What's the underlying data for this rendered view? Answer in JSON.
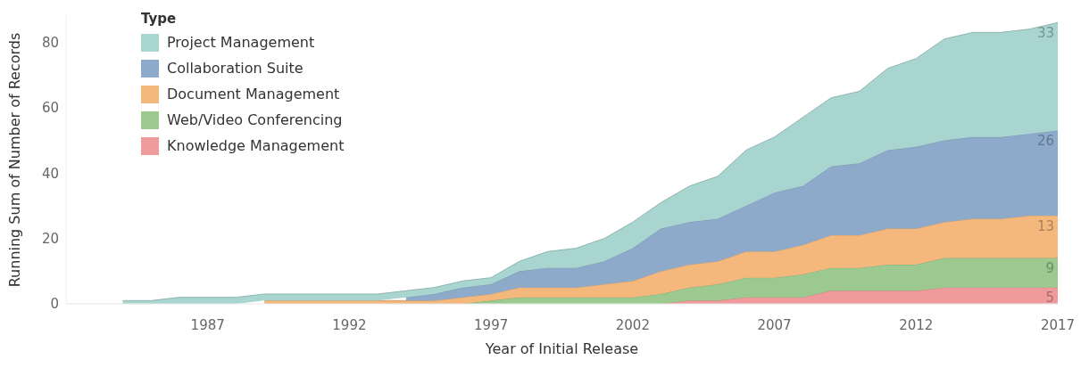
{
  "chart_data": {
    "type": "area",
    "stacked": true,
    "xlabel": "Year of Initial Release",
    "ylabel": "Running Sum of Number of Records",
    "legend_title": "Type",
    "legend": "top left",
    "x": [
      1984,
      1985,
      1986,
      1987,
      1988,
      1989,
      1990,
      1991,
      1992,
      1993,
      1994,
      1995,
      1996,
      1997,
      1998,
      1999,
      2000,
      2001,
      2002,
      2003,
      2004,
      2005,
      2006,
      2007,
      2008,
      2009,
      2010,
      2011,
      2012,
      2013,
      2014,
      2015,
      2016,
      2017
    ],
    "xlim": [
      1982,
      2017
    ],
    "xticks": [
      1987,
      1992,
      1997,
      2002,
      2007,
      2012,
      2017
    ],
    "ylim": [
      0,
      88
    ],
    "yticks": [
      0,
      20,
      40,
      60,
      80
    ],
    "series": [
      {
        "name": "Knowledge Management",
        "color": "#ef9a9b",
        "values": [
          null,
          null,
          null,
          null,
          null,
          null,
          null,
          null,
          null,
          null,
          null,
          null,
          null,
          null,
          null,
          null,
          null,
          null,
          null,
          0,
          1,
          1,
          2,
          2,
          2,
          4,
          4,
          4,
          4,
          5,
          5,
          5,
          5,
          5
        ],
        "value_labels": [
          null,
          null,
          null,
          null,
          null,
          null,
          null,
          null,
          null,
          null,
          null,
          null,
          null,
          null,
          null,
          null,
          null,
          null,
          null,
          null,
          null,
          null,
          null,
          null,
          null,
          null,
          null,
          null,
          null,
          null,
          null,
          null,
          null,
          "5"
        ]
      },
      {
        "name": "Web/Video Conferencing",
        "color": "#9cc98f",
        "values": [
          null,
          null,
          null,
          null,
          null,
          null,
          null,
          null,
          null,
          null,
          null,
          null,
          0,
          1,
          2,
          2,
          2,
          2,
          2,
          3,
          4,
          5,
          6,
          6,
          7,
          7,
          7,
          8,
          8,
          9,
          9,
          9,
          9,
          9
        ],
        "value_labels": [
          null,
          null,
          null,
          null,
          null,
          null,
          null,
          null,
          null,
          null,
          null,
          null,
          null,
          null,
          null,
          null,
          null,
          null,
          null,
          null,
          null,
          null,
          null,
          null,
          null,
          null,
          null,
          null,
          null,
          null,
          null,
          null,
          null,
          "9"
        ]
      },
      {
        "name": "Document Management",
        "color": "#f5b87c",
        "values": [
          null,
          null,
          null,
          null,
          null,
          1,
          1,
          1,
          1,
          1,
          1,
          1,
          2,
          2,
          3,
          3,
          3,
          4,
          5,
          7,
          7,
          7,
          8,
          8,
          9,
          10,
          10,
          11,
          11,
          11,
          12,
          12,
          13,
          13
        ],
        "value_labels": [
          null,
          null,
          null,
          null,
          null,
          null,
          null,
          null,
          null,
          null,
          null,
          null,
          null,
          null,
          null,
          null,
          null,
          null,
          null,
          null,
          null,
          null,
          null,
          null,
          null,
          null,
          null,
          null,
          null,
          null,
          null,
          null,
          null,
          "13"
        ]
      },
      {
        "name": "Collaboration Suite",
        "color": "#8eaacb",
        "values": [
          null,
          null,
          null,
          null,
          null,
          null,
          null,
          null,
          null,
          null,
          1,
          2,
          3,
          3,
          5,
          6,
          6,
          7,
          10,
          13,
          13,
          13,
          14,
          18,
          18,
          21,
          22,
          24,
          25,
          25,
          25,
          25,
          25,
          26
        ],
        "value_labels": [
          null,
          null,
          null,
          null,
          null,
          null,
          null,
          null,
          null,
          null,
          null,
          null,
          null,
          null,
          null,
          null,
          null,
          null,
          null,
          null,
          null,
          null,
          null,
          null,
          null,
          null,
          null,
          null,
          null,
          null,
          null,
          null,
          null,
          "26"
        ]
      },
      {
        "name": "Project Management",
        "color": "#a8d5cf",
        "values": [
          1,
          1,
          2,
          2,
          2,
          2,
          2,
          2,
          2,
          2,
          2,
          2,
          2,
          2,
          3,
          5,
          6,
          7,
          8,
          8,
          11,
          13,
          17,
          17,
          21,
          21,
          22,
          25,
          27,
          31,
          32,
          32,
          32,
          33
        ],
        "value_labels": [
          null,
          null,
          null,
          null,
          null,
          null,
          null,
          null,
          null,
          null,
          null,
          null,
          null,
          null,
          null,
          null,
          null,
          null,
          null,
          null,
          null,
          null,
          null,
          null,
          null,
          null,
          null,
          null,
          null,
          null,
          null,
          null,
          null,
          "33"
        ]
      }
    ]
  }
}
